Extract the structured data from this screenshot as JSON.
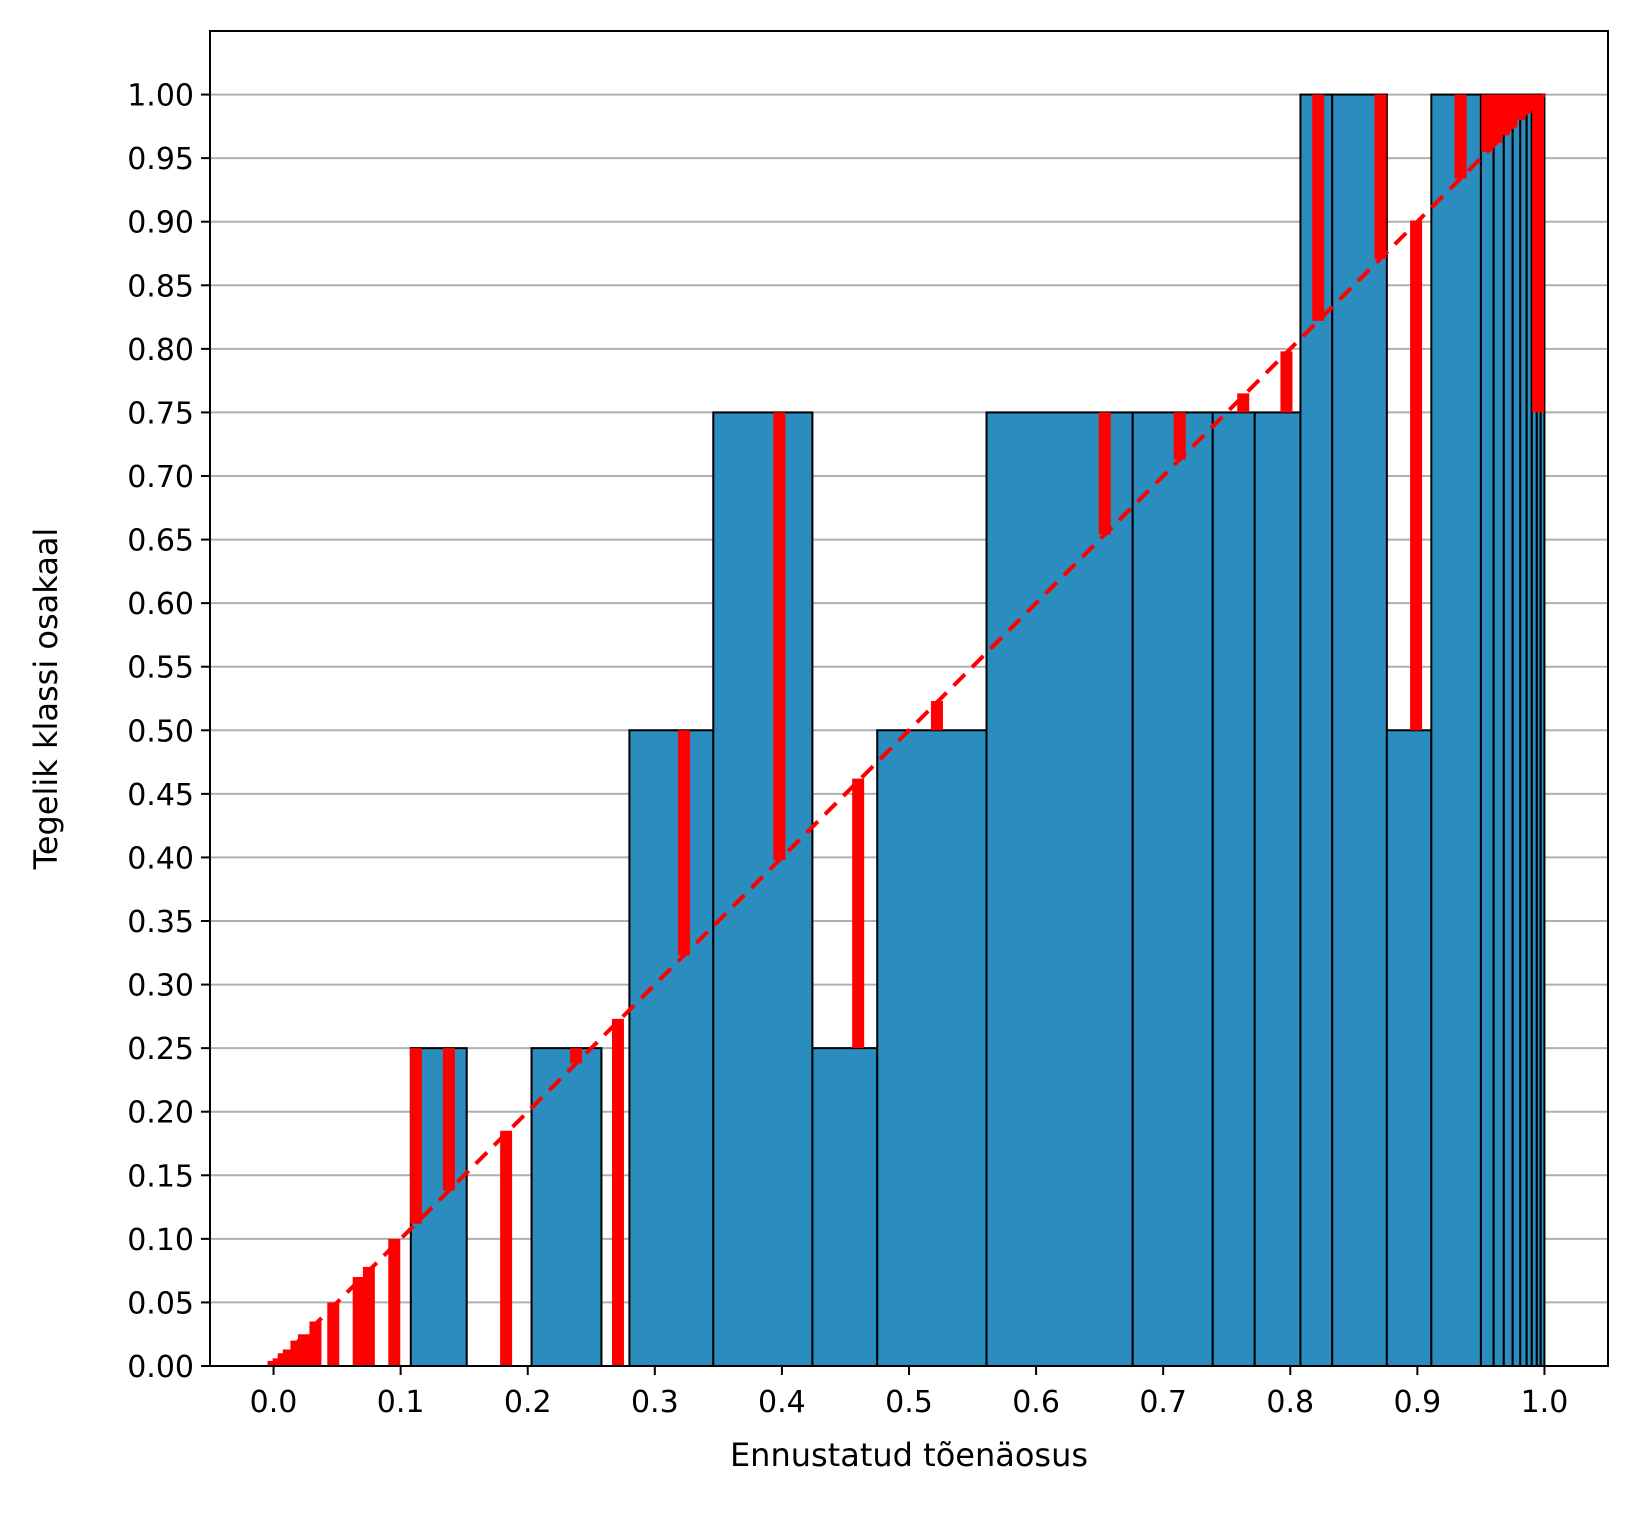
{
  "chart_data": {
    "type": "bar",
    "xlabel": "Ennustatud tõenäosus",
    "ylabel": "Tegelik klassi osakaal",
    "xlim": [
      -0.05,
      1.05
    ],
    "ylim": [
      0.0,
      1.05
    ],
    "xticks": [
      "0.0",
      "0.1",
      "0.2",
      "0.3",
      "0.4",
      "0.5",
      "0.6",
      "0.7",
      "0.8",
      "0.9",
      "1.0"
    ],
    "yticks": [
      "0.00",
      "0.05",
      "0.10",
      "0.15",
      "0.20",
      "0.25",
      "0.30",
      "0.35",
      "0.40",
      "0.45",
      "0.50",
      "0.55",
      "0.60",
      "0.65",
      "0.70",
      "0.75",
      "0.80",
      "0.85",
      "0.90",
      "0.95",
      "1.00"
    ],
    "grid": "y",
    "bars": [
      {
        "x0": 0.108,
        "x1": 0.152,
        "value": 0.25
      },
      {
        "x0": 0.203,
        "x1": 0.258,
        "value": 0.25
      },
      {
        "x0": 0.28,
        "x1": 0.346,
        "value": 0.5
      },
      {
        "x0": 0.346,
        "x1": 0.424,
        "value": 0.75
      },
      {
        "x0": 0.424,
        "x1": 0.475,
        "value": 0.25
      },
      {
        "x0": 0.475,
        "x1": 0.561,
        "value": 0.5
      },
      {
        "x0": 0.561,
        "x1": 0.676,
        "value": 0.75
      },
      {
        "x0": 0.676,
        "x1": 0.739,
        "value": 0.75
      },
      {
        "x0": 0.739,
        "x1": 0.772,
        "value": 0.75
      },
      {
        "x0": 0.772,
        "x1": 0.808,
        "value": 0.75
      },
      {
        "x0": 0.808,
        "x1": 0.833,
        "value": 1.0
      },
      {
        "x0": 0.833,
        "x1": 0.876,
        "value": 1.0
      },
      {
        "x0": 0.876,
        "x1": 0.911,
        "value": 0.5
      },
      {
        "x0": 0.911,
        "x1": 0.95,
        "value": 1.0
      },
      {
        "x0": 0.95,
        "x1": 0.96,
        "value": 1.0
      },
      {
        "x0": 0.96,
        "x1": 0.968,
        "value": 1.0
      },
      {
        "x0": 0.968,
        "x1": 0.975,
        "value": 1.0
      },
      {
        "x0": 0.975,
        "x1": 0.981,
        "value": 1.0
      },
      {
        "x0": 0.981,
        "x1": 0.986,
        "value": 1.0
      },
      {
        "x0": 0.986,
        "x1": 0.99,
        "value": 1.0
      },
      {
        "x0": 0.99,
        "x1": 0.994,
        "value": 1.0
      },
      {
        "x0": 0.994,
        "x1": 0.997,
        "value": 1.0
      },
      {
        "x0": 0.997,
        "x1": 1.0,
        "value": 1.0
      }
    ],
    "error_segments": [
      {
        "x": 0.0,
        "y0": 0.0,
        "y1": 0.004
      },
      {
        "x": 0.004,
        "y0": 0.0,
        "y1": 0.006
      },
      {
        "x": 0.008,
        "y0": 0.0,
        "y1": 0.01
      },
      {
        "x": 0.012,
        "y0": 0.0,
        "y1": 0.013
      },
      {
        "x": 0.018,
        "y0": 0.0,
        "y1": 0.02
      },
      {
        "x": 0.024,
        "y0": 0.0,
        "y1": 0.025
      },
      {
        "x": 0.033,
        "y0": 0.0,
        "y1": 0.035
      },
      {
        "x": 0.047,
        "y0": 0.0,
        "y1": 0.05
      },
      {
        "x": 0.067,
        "y0": 0.0,
        "y1": 0.07
      },
      {
        "x": 0.075,
        "y0": 0.0,
        "y1": 0.078
      },
      {
        "x": 0.095,
        "y0": 0.0,
        "y1": 0.1
      },
      {
        "x": 0.112,
        "y0": 0.112,
        "y1": 0.25
      },
      {
        "x": 0.138,
        "y0": 0.138,
        "y1": 0.25
      },
      {
        "x": 0.183,
        "y0": 0.0,
        "y1": 0.185
      },
      {
        "x": 0.238,
        "y0": 0.238,
        "y1": 0.25
      },
      {
        "x": 0.271,
        "y0": 0.0,
        "y1": 0.273
      },
      {
        "x": 0.323,
        "y0": 0.323,
        "y1": 0.5
      },
      {
        "x": 0.398,
        "y0": 0.398,
        "y1": 0.75
      },
      {
        "x": 0.46,
        "y0": 0.25,
        "y1": 0.462
      },
      {
        "x": 0.522,
        "y0": 0.5,
        "y1": 0.523
      },
      {
        "x": 0.654,
        "y0": 0.654,
        "y1": 0.75
      },
      {
        "x": 0.713,
        "y0": 0.713,
        "y1": 0.75
      },
      {
        "x": 0.763,
        "y0": 0.75,
        "y1": 0.765
      },
      {
        "x": 0.797,
        "y0": 0.75,
        "y1": 0.798
      },
      {
        "x": 0.822,
        "y0": 0.822,
        "y1": 1.0
      },
      {
        "x": 0.871,
        "y0": 0.871,
        "y1": 1.0
      },
      {
        "x": 0.899,
        "y0": 0.5,
        "y1": 0.901
      },
      {
        "x": 0.934,
        "y0": 0.934,
        "y1": 1.0
      },
      {
        "x": 0.955,
        "y0": 0.955,
        "y1": 1.0
      },
      {
        "x": 0.962,
        "y0": 0.962,
        "y1": 1.0
      },
      {
        "x": 0.968,
        "y0": 0.968,
        "y1": 1.0
      },
      {
        "x": 0.974,
        "y0": 0.974,
        "y1": 1.0
      },
      {
        "x": 0.98,
        "y0": 0.98,
        "y1": 1.0
      },
      {
        "x": 0.985,
        "y0": 0.985,
        "y1": 1.0
      },
      {
        "x": 0.99,
        "y0": 0.99,
        "y1": 1.0
      },
      {
        "x": 0.995,
        "y0": 0.75,
        "y1": 1.0
      }
    ],
    "reference_line": {
      "x": [
        0.0,
        1.0
      ],
      "y": [
        0.0,
        1.0
      ],
      "style": "dashed"
    },
    "colors": {
      "bar": "#2b8cbe",
      "bar_edge": "#000000",
      "error": "#ff0000",
      "reference": "#ff0000",
      "grid": "#b0b0b0"
    }
  }
}
